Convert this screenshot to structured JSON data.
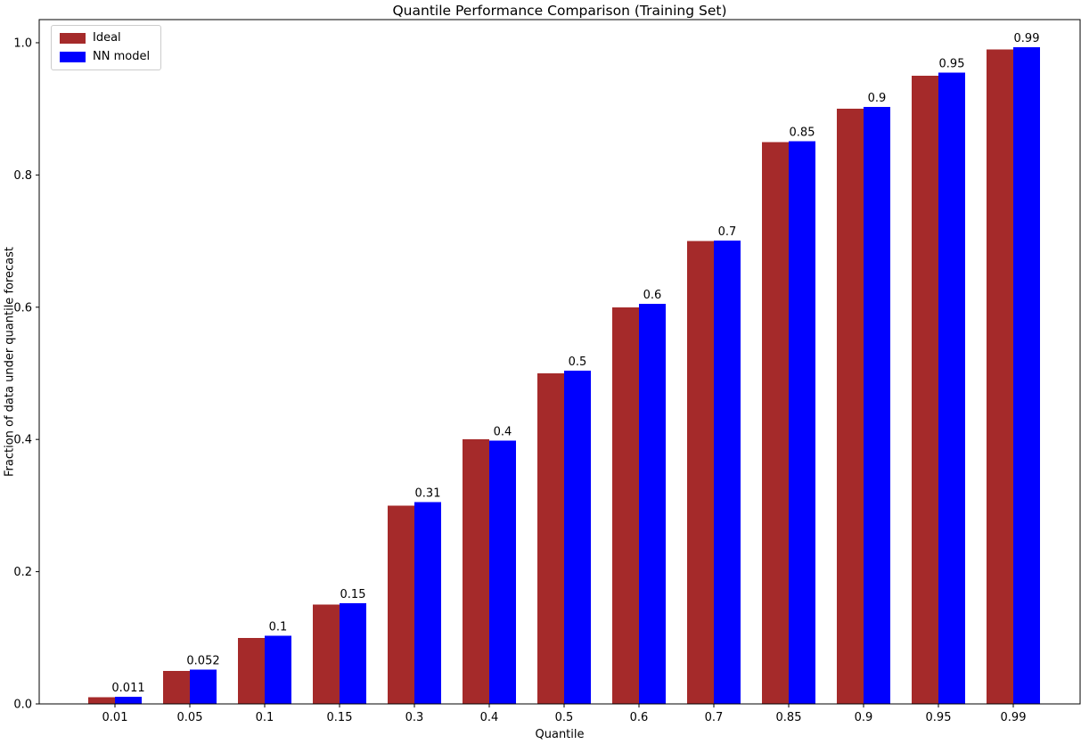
{
  "chart_data": {
    "type": "bar",
    "title": "Quantile Performance Comparison (Training Set)",
    "xlabel": "Quantile",
    "ylabel": "Fraction of data under quantile forecast",
    "categories": [
      "0.01",
      "0.05",
      "0.1",
      "0.15",
      "0.3",
      "0.4",
      "0.5",
      "0.6",
      "0.7",
      "0.85",
      "0.9",
      "0.95",
      "0.99"
    ],
    "series": [
      {
        "name": "Ideal",
        "color": "#a52a2a",
        "values": [
          0.01,
          0.05,
          0.1,
          0.15,
          0.3,
          0.4,
          0.5,
          0.6,
          0.7,
          0.85,
          0.9,
          0.95,
          0.99
        ]
      },
      {
        "name": "NN model",
        "color": "#0000ff",
        "values": [
          0.011,
          0.052,
          0.103,
          0.152,
          0.305,
          0.398,
          0.504,
          0.605,
          0.701,
          0.851,
          0.903,
          0.955,
          0.993
        ]
      }
    ],
    "bar_labels": [
      "0.011",
      "0.052",
      "0.1",
      "0.15",
      "0.31",
      "0.4",
      "0.5",
      "0.6",
      "0.7",
      "0.85",
      "0.9",
      "0.95",
      "0.99"
    ],
    "bar_label_series": "NN model",
    "yticks": [
      "0.0",
      "0.2",
      "0.4",
      "0.6",
      "0.8",
      "1.0"
    ],
    "ylim": [
      0,
      1.035
    ],
    "legend_position": "upper left",
    "grid": false,
    "text_color": "#000000",
    "axis_color": "#000000",
    "background": "#ffffff"
  }
}
